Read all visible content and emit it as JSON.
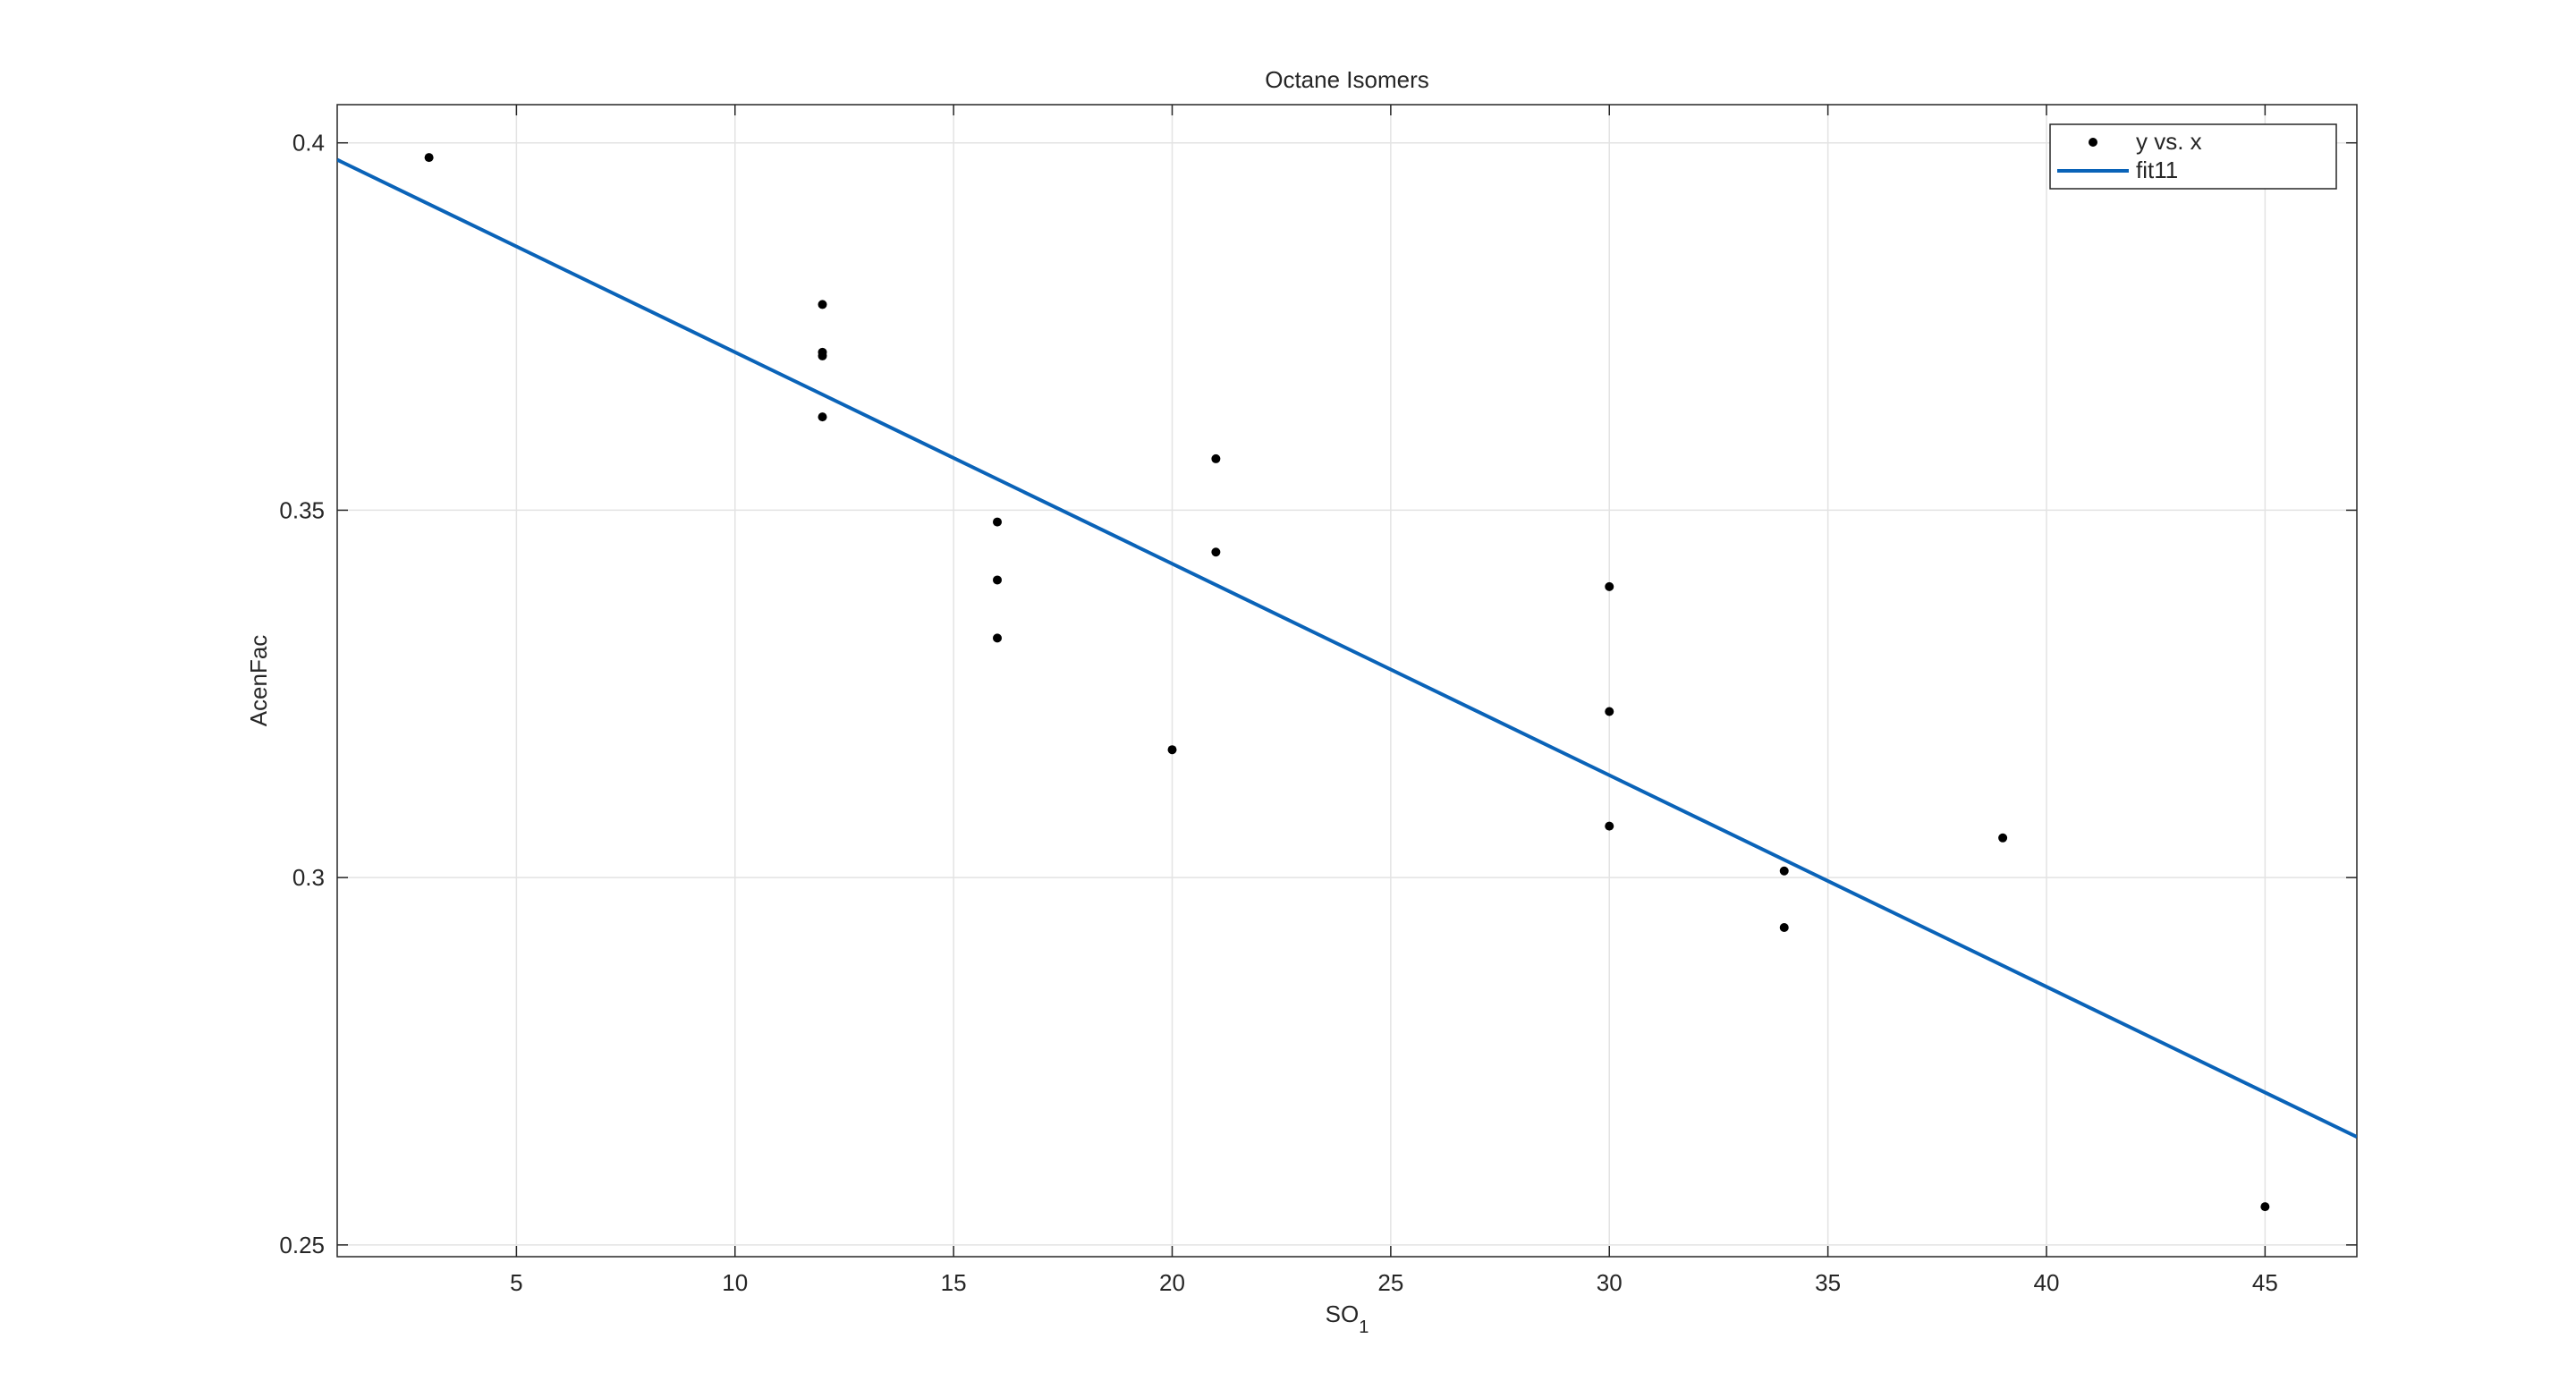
{
  "chart_data": {
    "type": "scatter",
    "title": "Octane Isomers",
    "x_label": "SO",
    "x_label_subscript": "1",
    "y_label": "AcenFac",
    "xlim": [
      0.9,
      47.1
    ],
    "ylim": [
      0.2484,
      0.4052
    ],
    "xticks": [
      5,
      10,
      15,
      20,
      25,
      30,
      35,
      40,
      45
    ],
    "yticks": [
      0.25,
      0.3,
      0.35,
      0.4
    ],
    "grid": true,
    "legend": "top-right",
    "series": [
      {
        "name": "y vs. x",
        "type": "scatter",
        "color": "#000000",
        "x": [
          3,
          12,
          12,
          12,
          12,
          16,
          16,
          16,
          20,
          21,
          21,
          30,
          30,
          30,
          34,
          34,
          39,
          45
        ],
        "values": [
          0.398,
          0.378,
          0.3715,
          0.371,
          0.3627,
          0.3484,
          0.3405,
          0.3326,
          0.3174,
          0.357,
          0.3443,
          0.3396,
          0.3226,
          0.307,
          0.3009,
          0.2932,
          0.3054,
          0.2552
        ]
      },
      {
        "name": "fit11",
        "type": "line",
        "color": "#0a63b8",
        "x": [
          0.9,
          47.1
        ],
        "values": [
          0.3977,
          0.2647
        ]
      }
    ]
  }
}
